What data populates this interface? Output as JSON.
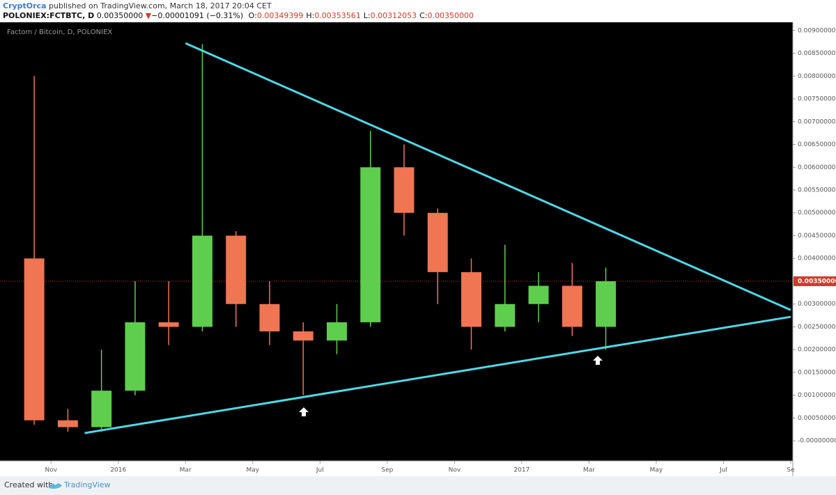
{
  "header": {
    "author": "CryptOrca",
    "published": "published on TradingView.com, March 18, 2017 20:04 CET",
    "symbol": "POLONIEX:FCTBTC, D",
    "last": "0.00350000",
    "direction": "▼",
    "change": "−0.00001091 (−0.31%)",
    "ohlc": [
      {
        "label": "O:",
        "value": "0.00349399"
      },
      {
        "label": "H:",
        "value": "0.00353561"
      },
      {
        "label": "L:",
        "value": "0.00312053"
      },
      {
        "label": "C:",
        "value": "0.00350000"
      }
    ]
  },
  "footer": {
    "text": "Created with",
    "brand": "TradingView"
  },
  "chart_data": {
    "type": "candlestick",
    "title": "Factom / Bitcoin, D, POLONIEX",
    "x": [
      "2015-10",
      "2015-11",
      "2015-12",
      "2016-01",
      "2016-02",
      "2016-03",
      "2016-04",
      "2016-05",
      "2016-06",
      "2016-07",
      "2016-08",
      "2016-09",
      "2016-10",
      "2016-11",
      "2016-12",
      "2017-01",
      "2017-02",
      "2017-03"
    ],
    "open": [
      0.004,
      0.00045,
      0.0003,
      0.0011,
      0.0026,
      0.0025,
      0.0045,
      0.003,
      0.0024,
      0.0022,
      0.0026,
      0.006,
      0.005,
      0.0037,
      0.0025,
      0.003,
      0.0034,
      0.0025
    ],
    "high": [
      0.008,
      0.0007,
      0.002,
      0.0035,
      0.0035,
      0.0087,
      0.0046,
      0.0035,
      0.0026,
      0.003,
      0.0068,
      0.0065,
      0.0051,
      0.004,
      0.0043,
      0.0037,
      0.0039,
      0.0038
    ],
    "low": [
      0.00035,
      0.0002,
      0.0002,
      0.001,
      0.0021,
      0.0024,
      0.0025,
      0.0021,
      0.001,
      0.0019,
      0.0025,
      0.0045,
      0.003,
      0.002,
      0.0024,
      0.0026,
      0.0023,
      0.002
    ],
    "close": [
      0.00045,
      0.0003,
      0.0011,
      0.0026,
      0.0025,
      0.0045,
      0.003,
      0.0024,
      0.0022,
      0.0026,
      0.006,
      0.005,
      0.0037,
      0.0025,
      0.003,
      0.0034,
      0.0025,
      0.0035
    ],
    "up_color": "#5fce4e",
    "down_color": "#ef7553",
    "xlim": [
      "2015-10",
      "2017-09"
    ],
    "xticks": [
      {
        "value": "2015-11",
        "label": "Nov"
      },
      {
        "value": "2016-01",
        "label": "2016"
      },
      {
        "value": "2016-03",
        "label": "Mar"
      },
      {
        "value": "2016-05",
        "label": "May"
      },
      {
        "value": "2016-07",
        "label": "Jul"
      },
      {
        "value": "2016-09",
        "label": "Sep"
      },
      {
        "value": "2016-11",
        "label": "Nov"
      },
      {
        "value": "2017-01",
        "label": "2017"
      },
      {
        "value": "2017-03",
        "label": "Mar"
      },
      {
        "value": "2017-05",
        "label": "May"
      },
      {
        "value": "2017-07",
        "label": "Jul"
      },
      {
        "value": "2017-09",
        "label": "Se"
      }
    ],
    "ylim": [
      -0.00044,
      0.00918
    ],
    "yticks": [
      {
        "value": 0,
        "label": "-0.00000000"
      },
      {
        "value": 0.0005,
        "label": "0.00050000"
      },
      {
        "value": 0.001,
        "label": "0.00100000"
      },
      {
        "value": 0.0015,
        "label": "0.00150000"
      },
      {
        "value": 0.002,
        "label": "0.00200000"
      },
      {
        "value": 0.0025,
        "label": "0.00250000"
      },
      {
        "value": 0.003,
        "label": "0.00300000"
      },
      {
        "value": 0.0035,
        "label": "0.00350000"
      },
      {
        "value": 0.004,
        "label": "0.00400000"
      },
      {
        "value": 0.0045,
        "label": "0.00450000"
      },
      {
        "value": 0.005,
        "label": "0.00500000"
      },
      {
        "value": 0.0055,
        "label": "0.00550000"
      },
      {
        "value": 0.006,
        "label": "0.00600000"
      },
      {
        "value": 0.0065,
        "label": "0.00650000"
      },
      {
        "value": 0.007,
        "label": "0.00700000"
      },
      {
        "value": 0.0075,
        "label": "0.00750000"
      },
      {
        "value": 0.008,
        "label": "0.00800000"
      },
      {
        "value": 0.0085,
        "label": "0.00850000"
      },
      {
        "value": 0.009,
        "label": "0.00900000"
      }
    ],
    "grid": false,
    "last_price": {
      "value": 0.0035,
      "label": "0.00350000",
      "color": "#d23a2a"
    },
    "trendlines": [
      {
        "x": [
          "2016-03",
          "2017-09"
        ],
        "y": [
          0.00872,
          0.00287
        ],
        "color": "#4dd9e8"
      },
      {
        "x": [
          "2015-12",
          "2017-09"
        ],
        "y": [
          0.00017,
          0.00272
        ],
        "color": "#4dd9e8"
      }
    ]
  }
}
